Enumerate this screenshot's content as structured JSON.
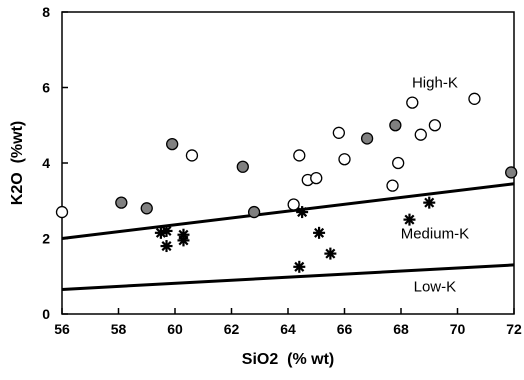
{
  "chart_data": {
    "type": "scatter",
    "xlabel": "SiO2  (% wt)",
    "ylabel": "K2O  (%wt)",
    "xlim": [
      56,
      72
    ],
    "ylim": [
      0,
      8
    ],
    "x_ticks": [
      56,
      58,
      60,
      62,
      64,
      66,
      68,
      70,
      72
    ],
    "y_ticks": [
      0,
      2,
      4,
      6,
      8
    ],
    "grid": false,
    "boundary_lines": [
      {
        "name": "Medium-K / High-K boundary",
        "points": [
          [
            56,
            2.0
          ],
          [
            72,
            3.45
          ]
        ]
      },
      {
        "name": "Low-K / Medium-K boundary",
        "points": [
          [
            56,
            0.65
          ],
          [
            72,
            1.3
          ]
        ]
      }
    ],
    "region_labels": [
      {
        "text": "High-K",
        "x": 69.2,
        "y": 6.0
      },
      {
        "text": "Medium-K",
        "x": 69.2,
        "y": 2.0
      },
      {
        "text": "Low-K",
        "x": 69.2,
        "y": 0.6
      }
    ],
    "series": [
      {
        "marker": "open-circle",
        "color": "#ffffff",
        "points": [
          [
            56.0,
            2.7
          ],
          [
            60.6,
            4.2
          ],
          [
            64.2,
            2.9
          ],
          [
            64.4,
            4.2
          ],
          [
            64.7,
            3.55
          ],
          [
            65.0,
            3.6
          ],
          [
            65.8,
            4.8
          ],
          [
            66.0,
            4.1
          ],
          [
            67.7,
            3.4
          ],
          [
            67.9,
            4.0
          ],
          [
            68.4,
            5.6
          ],
          [
            68.7,
            4.75
          ],
          [
            69.2,
            5.0
          ],
          [
            70.6,
            5.7
          ]
        ]
      },
      {
        "marker": "filled-circle",
        "color": "#808080",
        "points": [
          [
            58.1,
            2.95
          ],
          [
            59.0,
            2.8
          ],
          [
            59.9,
            4.5
          ],
          [
            62.4,
            3.9
          ],
          [
            62.8,
            2.7
          ],
          [
            66.8,
            4.65
          ],
          [
            67.8,
            5.0
          ],
          [
            71.9,
            3.75
          ]
        ]
      },
      {
        "marker": "asterisk",
        "color": "#000000",
        "points": [
          [
            59.5,
            2.15
          ],
          [
            59.7,
            2.2
          ],
          [
            59.7,
            1.8
          ],
          [
            60.3,
            2.1
          ],
          [
            60.3,
            1.95
          ],
          [
            64.5,
            2.7
          ],
          [
            65.1,
            2.15
          ],
          [
            65.5,
            1.6
          ],
          [
            64.4,
            1.25
          ],
          [
            68.3,
            2.5
          ],
          [
            69.0,
            2.95
          ]
        ]
      }
    ]
  }
}
